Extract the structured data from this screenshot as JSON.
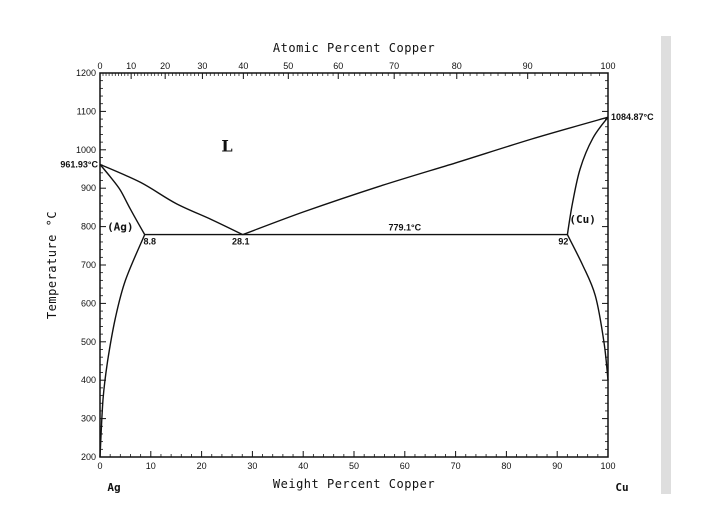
{
  "chart_data": {
    "type": "line",
    "title": "",
    "xlabel": "Weight Percent Copper",
    "x2label": "Atomic Percent Copper",
    "ylabel": "Temperature °C",
    "xlim": [
      0,
      100
    ],
    "ylim": [
      200,
      1200
    ],
    "x_ticks": [
      "0",
      "10",
      "20",
      "30",
      "40",
      "50",
      "60",
      "70",
      "80",
      "90",
      "100"
    ],
    "x2_ticks": [
      {
        "label": "0",
        "atomic": 0,
        "wt": 0
      },
      {
        "label": "10",
        "atomic": 10,
        "wt": 6.13
      },
      {
        "label": "20",
        "atomic": 20,
        "wt": 12.83
      },
      {
        "label": "30",
        "atomic": 30,
        "wt": 20.16
      },
      {
        "label": "40",
        "atomic": 40,
        "wt": 28.22
      },
      {
        "label": "50",
        "atomic": 50,
        "wt": 37.07
      },
      {
        "label": "60",
        "atomic": 60,
        "wt": 46.9
      },
      {
        "label": "70",
        "atomic": 70,
        "wt": 57.91
      },
      {
        "label": "80",
        "atomic": 80,
        "wt": 70.23
      },
      {
        "label": "90",
        "atomic": 90,
        "wt": 84.19
      },
      {
        "label": "100",
        "atomic": 100,
        "wt": 100
      }
    ],
    "y_ticks": [
      "200",
      "300",
      "400",
      "500",
      "600",
      "700",
      "800",
      "900",
      "1000",
      "1100",
      "1200"
    ],
    "grid": false,
    "series": [
      {
        "values": [
          [
            0,
            961.93
          ],
          [
            2,
            930
          ],
          [
            4,
            895
          ],
          [
            6,
            845
          ],
          [
            8.8,
            779.1
          ]
        ]
      },
      {
        "values": [
          [
            0,
            961.93
          ],
          [
            8,
            915
          ],
          [
            15,
            860
          ],
          [
            22,
            818
          ],
          [
            28.1,
            779.1
          ]
        ]
      },
      {
        "values": [
          [
            28.1,
            779.1
          ],
          [
            40,
            838
          ],
          [
            55,
            905
          ],
          [
            70,
            966
          ],
          [
            85,
            1028
          ],
          [
            100,
            1084.87
          ]
        ]
      },
      {
        "values": [
          [
            8.8,
            779.1
          ],
          [
            92,
            779.1
          ]
        ]
      },
      {
        "values": [
          [
            0,
            200
          ],
          [
            0.6,
            350
          ],
          [
            1.5,
            450
          ],
          [
            3,
            560
          ],
          [
            5,
            660
          ],
          [
            8.8,
            779.1
          ]
        ]
      },
      {
        "values": [
          [
            92,
            779.1
          ],
          [
            93,
            860
          ],
          [
            94.5,
            950
          ],
          [
            97,
            1030
          ],
          [
            100,
            1084.87
          ]
        ]
      },
      {
        "values": [
          [
            92,
            779.1
          ],
          [
            95,
            700
          ],
          [
            97.5,
            620
          ],
          [
            99.2,
            500
          ],
          [
            100,
            400
          ]
        ]
      }
    ],
    "annotations": [
      {
        "text": "L",
        "x": 25,
        "y": 995
      },
      {
        "text": "961.93°C",
        "x": 0,
        "y": 961.93
      },
      {
        "text": "1084.87°C",
        "x": 100,
        "y": 1084.87
      },
      {
        "text": "779.1°C",
        "x": 60,
        "y": 779.1
      },
      {
        "text": "(Ag)",
        "x": 4,
        "y": 790
      },
      {
        "text": "(Cu)",
        "x": 95,
        "y": 810
      },
      {
        "text": "8.8",
        "x": 8.8,
        "y": 779.1
      },
      {
        "text": "28.1",
        "x": 28.1,
        "y": 779.1
      },
      {
        "text": "92",
        "x": 92,
        "y": 779.1
      },
      {
        "text": "Ag",
        "x": 0,
        "y": 200
      },
      {
        "text": "Cu",
        "x": 100,
        "y": 200
      }
    ]
  }
}
